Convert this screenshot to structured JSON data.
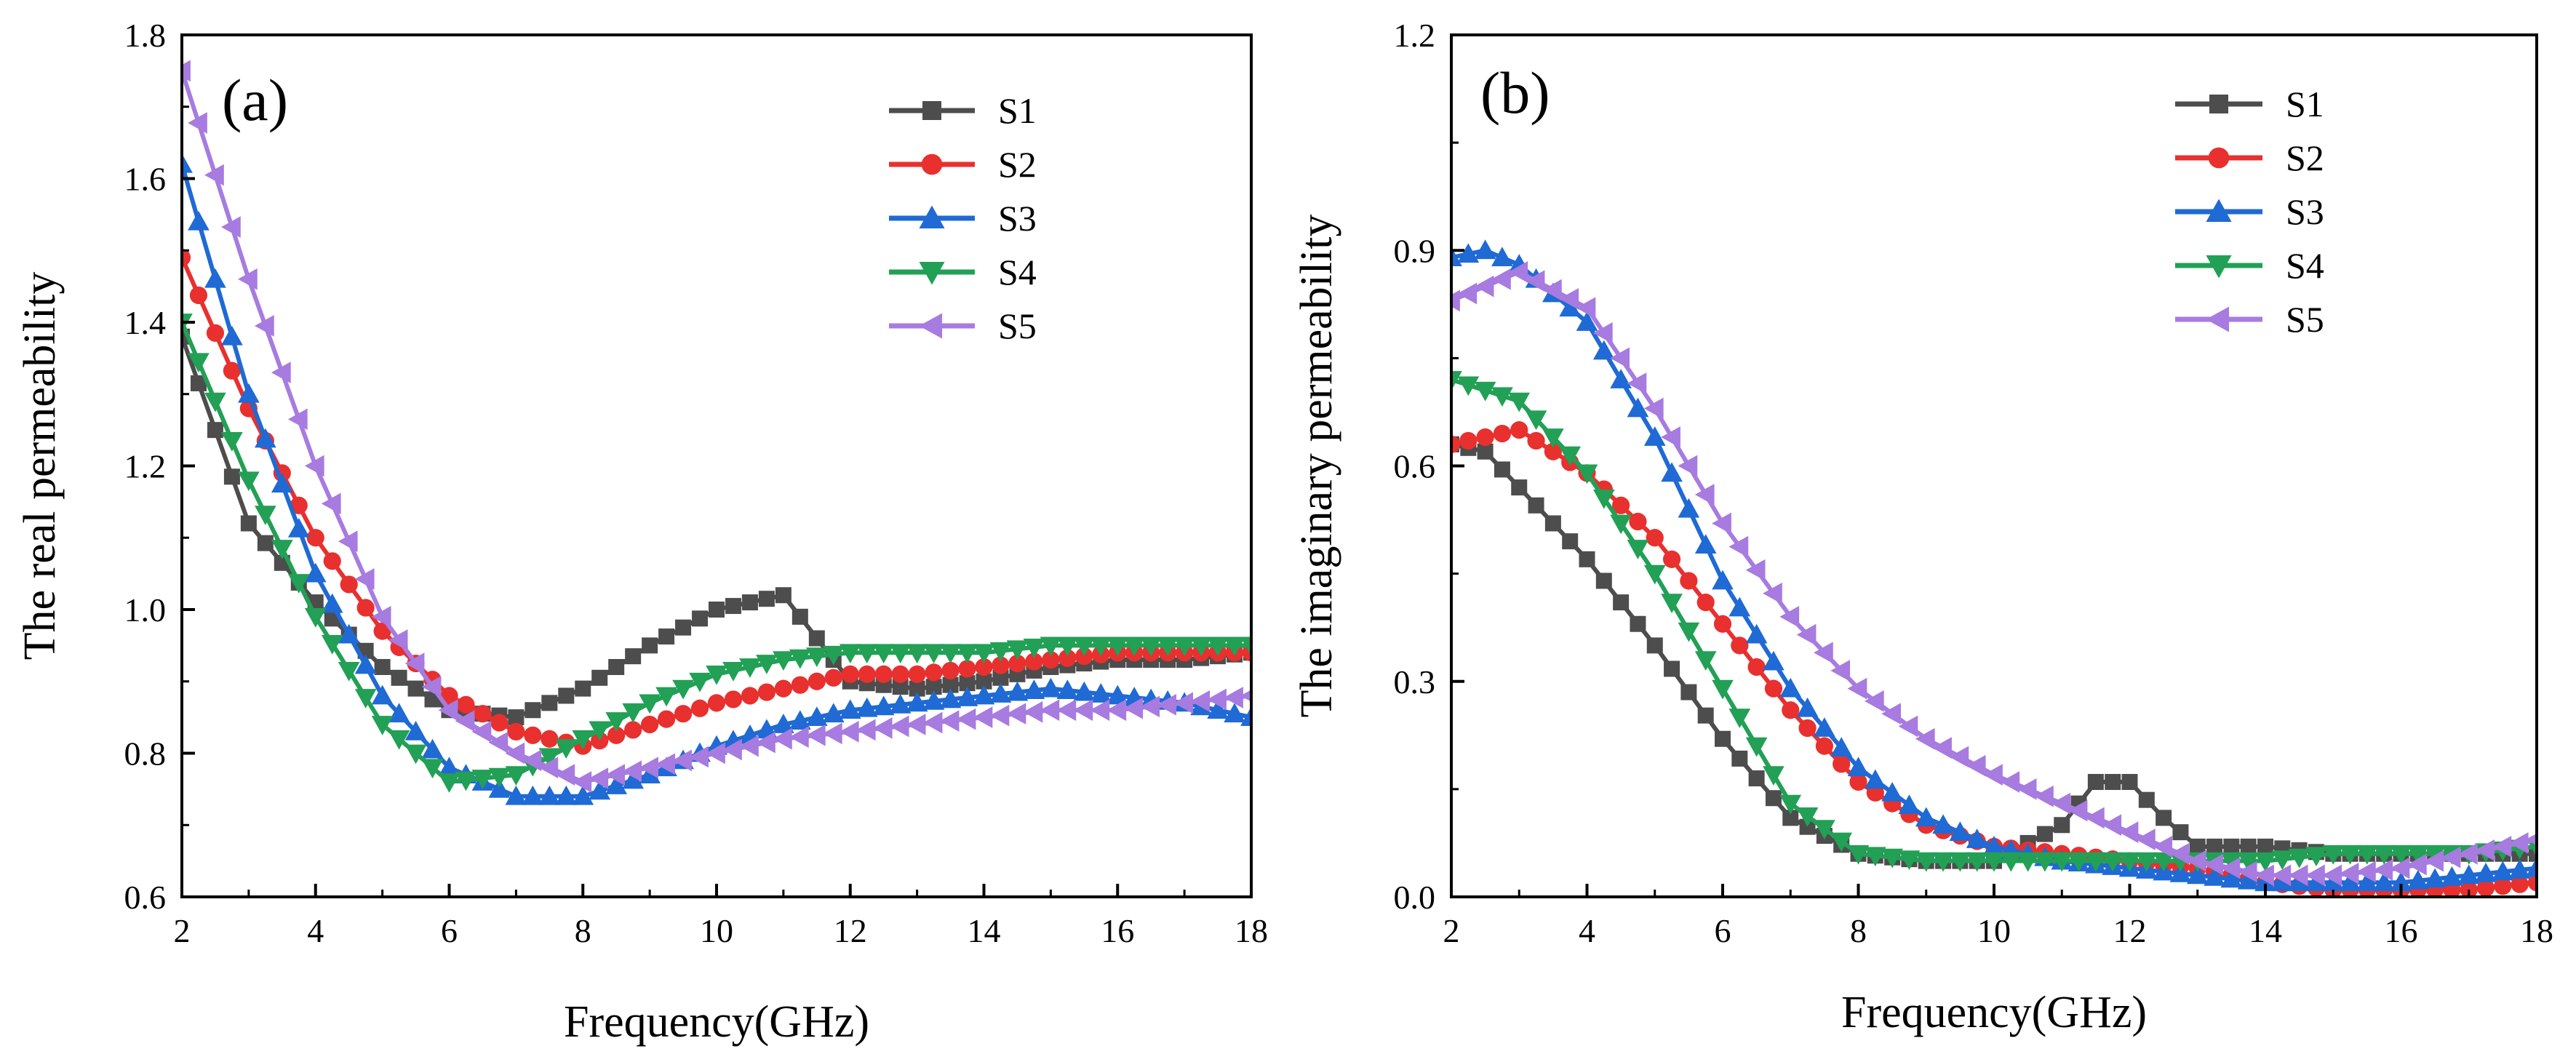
{
  "chart_data": [
    {
      "id": "a",
      "type": "line",
      "panel_label": "(a)",
      "xlabel": "Frequency(GHz)",
      "ylabel": "The real permeability",
      "xlim": [
        2,
        18
      ],
      "ylim": [
        0.6,
        1.8
      ],
      "xticks": [
        2,
        4,
        6,
        8,
        10,
        12,
        14,
        16,
        18
      ],
      "xtick_labels": [
        "2",
        "4",
        "6",
        "8",
        "10",
        "12",
        "14",
        "16",
        "18"
      ],
      "yticks": [
        0.6,
        0.8,
        1.0,
        1.2,
        1.4,
        1.6,
        1.8
      ],
      "ytick_labels": [
        "0.6",
        "0.8",
        "1.0",
        "1.2",
        "1.4",
        "1.6",
        "1.8"
      ],
      "legend_position": "top-right",
      "series": [
        {
          "name": "S1",
          "color": "#4d4d4d",
          "marker": "square",
          "x": [
            2,
            3,
            4,
            5,
            6,
            7,
            7.5,
            8,
            9,
            10,
            10.5,
            11,
            11.5,
            12,
            13,
            14,
            15,
            16,
            17,
            18
          ],
          "y": [
            1.38,
            1.12,
            1.01,
            0.92,
            0.86,
            0.85,
            0.87,
            0.89,
            0.95,
            1.0,
            1.01,
            1.02,
            0.96,
            0.9,
            0.89,
            0.9,
            0.92,
            0.93,
            0.93,
            0.94
          ]
        },
        {
          "name": "S2",
          "color": "#e8302f",
          "marker": "circle",
          "x": [
            2,
            3,
            4,
            5,
            6,
            7,
            8,
            9,
            10,
            11,
            12,
            13,
            14,
            15,
            16,
            17,
            18
          ],
          "y": [
            1.49,
            1.28,
            1.1,
            0.97,
            0.88,
            0.83,
            0.81,
            0.84,
            0.87,
            0.89,
            0.91,
            0.91,
            0.92,
            0.93,
            0.94,
            0.94,
            0.94
          ]
        },
        {
          "name": "S3",
          "color": "#1f6ad4",
          "marker": "triangle-up",
          "x": [
            2,
            3,
            4,
            5,
            6,
            7,
            8,
            9,
            10,
            11,
            12,
            13,
            14,
            15,
            16,
            17,
            18
          ],
          "y": [
            1.62,
            1.3,
            1.05,
            0.88,
            0.78,
            0.74,
            0.74,
            0.77,
            0.81,
            0.84,
            0.86,
            0.87,
            0.88,
            0.89,
            0.88,
            0.87,
            0.85
          ]
        },
        {
          "name": "S4",
          "color": "#22a055",
          "marker": "triangle-down",
          "x": [
            2,
            3,
            4,
            5,
            6,
            7,
            8,
            9,
            10,
            11,
            12,
            13,
            14,
            15,
            16,
            17,
            18
          ],
          "y": [
            1.4,
            1.18,
            0.99,
            0.84,
            0.76,
            0.77,
            0.82,
            0.87,
            0.91,
            0.93,
            0.94,
            0.94,
            0.94,
            0.95,
            0.95,
            0.95,
            0.95
          ]
        },
        {
          "name": "S5",
          "color": "#a77be0",
          "marker": "triangle-left",
          "x": [
            2,
            3,
            4,
            5,
            6,
            7,
            8,
            9,
            10,
            11,
            12,
            13,
            14,
            15,
            16,
            17,
            18
          ],
          "y": [
            1.75,
            1.46,
            1.2,
            0.99,
            0.86,
            0.8,
            0.76,
            0.78,
            0.8,
            0.82,
            0.83,
            0.84,
            0.85,
            0.86,
            0.86,
            0.87,
            0.88
          ]
        }
      ]
    },
    {
      "id": "b",
      "type": "line",
      "panel_label": "(b)",
      "xlabel": "Frequency(GHz)",
      "ylabel": "The imaginary permeability",
      "xlim": [
        2,
        18
      ],
      "ylim": [
        0.0,
        1.2
      ],
      "xticks": [
        2,
        4,
        6,
        8,
        10,
        12,
        14,
        16,
        18
      ],
      "xtick_labels": [
        "2",
        "4",
        "6",
        "8",
        "10",
        "12",
        "14",
        "16",
        "18"
      ],
      "yticks": [
        0.0,
        0.3,
        0.6,
        0.9,
        1.2
      ],
      "ytick_labels": [
        "0.0",
        "0.3",
        "0.6",
        "0.9",
        "1.2"
      ],
      "legend_position": "top-right",
      "series": [
        {
          "name": "S1",
          "color": "#4d4d4d",
          "marker": "square",
          "x": [
            2,
            2.5,
            3,
            4,
            5,
            6,
            7,
            8,
            9,
            10,
            11,
            11.5,
            12,
            12.5,
            13,
            14,
            15,
            16,
            17,
            18
          ],
          "y": [
            0.63,
            0.62,
            0.57,
            0.47,
            0.35,
            0.22,
            0.11,
            0.06,
            0.05,
            0.05,
            0.1,
            0.16,
            0.16,
            0.11,
            0.07,
            0.07,
            0.06,
            0.06,
            0.06,
            0.06
          ]
        },
        {
          "name": "S2",
          "color": "#e8302f",
          "marker": "circle",
          "x": [
            2,
            3,
            4,
            5,
            6,
            7,
            8,
            9,
            10,
            11,
            12,
            13,
            14,
            15,
            16,
            17,
            18
          ],
          "y": [
            0.63,
            0.65,
            0.59,
            0.5,
            0.38,
            0.26,
            0.16,
            0.1,
            0.07,
            0.06,
            0.05,
            0.04,
            0.02,
            0.01,
            0.01,
            0.01,
            0.02
          ]
        },
        {
          "name": "S3",
          "color": "#1f6ad4",
          "marker": "triangle-up",
          "x": [
            2,
            2.5,
            3,
            4,
            5,
            6,
            7,
            8,
            9,
            10,
            11,
            12,
            13,
            14,
            15,
            16,
            17,
            18
          ],
          "y": [
            0.89,
            0.9,
            0.88,
            0.8,
            0.64,
            0.44,
            0.29,
            0.18,
            0.11,
            0.07,
            0.05,
            0.04,
            0.03,
            0.02,
            0.02,
            0.02,
            0.03,
            0.04
          ]
        },
        {
          "name": "S4",
          "color": "#22a055",
          "marker": "triangle-down",
          "x": [
            2,
            3,
            4,
            5,
            6,
            7,
            8,
            9,
            10,
            11,
            12,
            13,
            14,
            15,
            16,
            17,
            18
          ],
          "y": [
            0.72,
            0.69,
            0.59,
            0.45,
            0.29,
            0.13,
            0.06,
            0.05,
            0.05,
            0.05,
            0.05,
            0.05,
            0.05,
            0.06,
            0.06,
            0.06,
            0.07
          ]
        },
        {
          "name": "S5",
          "color": "#a77be0",
          "marker": "triangle-left",
          "x": [
            2,
            3,
            4,
            5,
            6,
            7,
            8,
            9,
            10,
            11,
            12,
            13,
            14,
            15,
            16,
            17,
            18
          ],
          "y": [
            0.83,
            0.87,
            0.82,
            0.68,
            0.52,
            0.39,
            0.29,
            0.22,
            0.17,
            0.13,
            0.09,
            0.05,
            0.03,
            0.03,
            0.04,
            0.06,
            0.08
          ]
        }
      ]
    }
  ]
}
